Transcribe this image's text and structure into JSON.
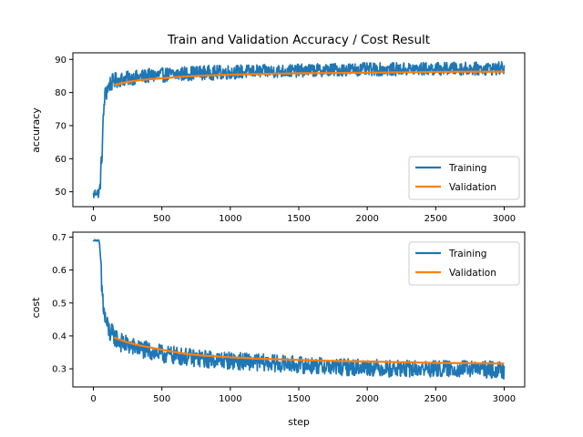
{
  "chart_data": [
    {
      "type": "line",
      "title": "Train and Validation Accuracy / Cost Result",
      "xlabel": "",
      "ylabel": "accuracy",
      "xlim": [
        -150,
        3150
      ],
      "ylim": [
        45.5,
        92
      ],
      "xticks": [
        "0",
        "500",
        "1000",
        "1500",
        "2000",
        "2500",
        "3000"
      ],
      "yticks": [
        "50",
        "60",
        "70",
        "80",
        "90"
      ],
      "legend": "lower-right",
      "grid": false,
      "series": [
        {
          "name": "Training",
          "color": "#1f77b4",
          "style": "noisy",
          "x": [
            0,
            20,
            40,
            50,
            60,
            80,
            100,
            120,
            150,
            200,
            300,
            400,
            500,
            600,
            700,
            800,
            900,
            1000,
            1200,
            1400,
            1600,
            1800,
            2000,
            2200,
            2400,
            2600,
            2800,
            3000
          ],
          "y": [
            49,
            50,
            49.5,
            52,
            60,
            78,
            81,
            82.5,
            83.5,
            84,
            84.5,
            85,
            85.3,
            85.5,
            85.8,
            86,
            86,
            86.2,
            86.4,
            86.5,
            86.7,
            86.9,
            87,
            87,
            87.1,
            87.2,
            87.2,
            87.3
          ],
          "noise": [
            1.5,
            1.5,
            1.5,
            2,
            4,
            3,
            3,
            2.5,
            2.5,
            2.2,
            2.2,
            2.2,
            2.2,
            2.2,
            2.2,
            2.2,
            2.2,
            2.2,
            2.0,
            2.0,
            2.0,
            2.0,
            2.0,
            2.0,
            2.0,
            2.0,
            2.0,
            2.0
          ]
        },
        {
          "name": "Validation",
          "color": "#ff7f0e",
          "x": [
            150,
            250,
            350,
            500,
            650,
            800,
            1000,
            1250,
            1500,
            1750,
            2000,
            2250,
            2500,
            2750,
            3000
          ],
          "y": [
            82.3,
            83.2,
            83.8,
            84.3,
            84.8,
            85.1,
            85.4,
            85.6,
            85.8,
            85.9,
            86.0,
            86.1,
            86.2,
            86.3,
            86.3
          ]
        }
      ]
    },
    {
      "type": "line",
      "title": "",
      "xlabel": "step",
      "ylabel": "cost",
      "xlim": [
        -150,
        3150
      ],
      "ylim": [
        0.245,
        0.715
      ],
      "xticks": [
        "0",
        "500",
        "1000",
        "1500",
        "2000",
        "2500",
        "3000"
      ],
      "yticks": [
        "0.3",
        "0.4",
        "0.5",
        "0.6",
        "0.7"
      ],
      "legend": "upper-right",
      "grid": false,
      "series": [
        {
          "name": "Training",
          "color": "#1f77b4",
          "style": "noisy",
          "x": [
            0,
            20,
            40,
            50,
            60,
            80,
            100,
            120,
            150,
            200,
            300,
            400,
            500,
            600,
            700,
            800,
            1000,
            1200,
            1400,
            1600,
            1800,
            2000,
            2200,
            2400,
            2600,
            2800,
            3000
          ],
          "y": [
            0.69,
            0.69,
            0.69,
            0.65,
            0.55,
            0.46,
            0.43,
            0.41,
            0.4,
            0.38,
            0.365,
            0.355,
            0.345,
            0.34,
            0.335,
            0.33,
            0.325,
            0.32,
            0.315,
            0.31,
            0.305,
            0.305,
            0.3,
            0.3,
            0.3,
            0.3,
            0.295
          ],
          "noise": [
            0.002,
            0.002,
            0.002,
            0.02,
            0.05,
            0.04,
            0.035,
            0.035,
            0.03,
            0.03,
            0.028,
            0.028,
            0.028,
            0.028,
            0.027,
            0.027,
            0.027,
            0.026,
            0.026,
            0.026,
            0.026,
            0.026,
            0.026,
            0.026,
            0.026,
            0.026,
            0.026
          ]
        },
        {
          "name": "Validation",
          "color": "#ff7f0e",
          "x": [
            150,
            250,
            350,
            500,
            650,
            800,
            1000,
            1250,
            1500,
            1750,
            2000,
            2250,
            2500,
            2750,
            3000
          ],
          "y": [
            0.395,
            0.38,
            0.37,
            0.358,
            0.347,
            0.34,
            0.335,
            0.33,
            0.327,
            0.324,
            0.322,
            0.32,
            0.318,
            0.317,
            0.316
          ]
        }
      ]
    }
  ]
}
